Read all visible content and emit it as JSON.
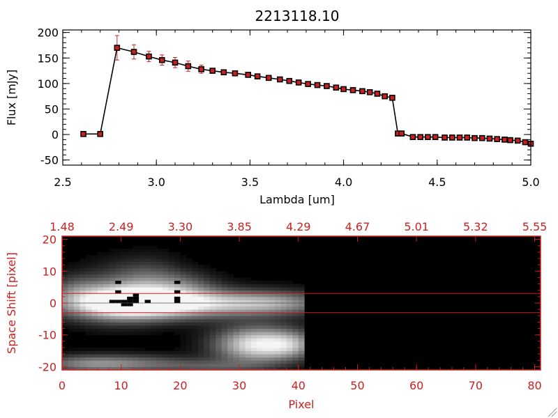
{
  "chart_data": [
    {
      "type": "line",
      "title": "2213118.10",
      "xlabel": "Lambda [um]",
      "ylabel": "Flux [mJy]",
      "xlim": [
        2.5,
        5.0
      ],
      "ylim": [
        -60,
        205
      ],
      "xticks": [
        "2.5",
        "3.0",
        "3.5",
        "4.0",
        "4.5",
        "5.0"
      ],
      "xtick_values": [
        2.5,
        3.0,
        3.5,
        4.0,
        4.5,
        5.0
      ],
      "yticks": [
        "200",
        "150",
        "100",
        "50",
        "0",
        "-50"
      ],
      "ytick_values": [
        200,
        150,
        100,
        50,
        0,
        -50
      ],
      "grid": false,
      "line_color": "#000000",
      "marker_color": "#cc2020",
      "errorbar_color": "#cc2020",
      "x": [
        2.61,
        2.7,
        2.79,
        2.88,
        2.96,
        3.03,
        3.1,
        3.17,
        3.24,
        3.3,
        3.36,
        3.42,
        3.49,
        3.54,
        3.6,
        3.66,
        3.71,
        3.76,
        3.81,
        3.86,
        3.91,
        3.96,
        4.0,
        4.05,
        4.1,
        4.14,
        4.18,
        4.22,
        4.26,
        4.29,
        4.31,
        4.37,
        4.41,
        4.45,
        4.49,
        4.54,
        4.58,
        4.62,
        4.66,
        4.7,
        4.74,
        4.78,
        4.82,
        4.86,
        4.89,
        4.93,
        4.97,
        5.0
      ],
      "y": [
        1,
        1,
        170,
        162,
        153,
        146,
        141,
        134,
        128,
        125,
        122,
        120,
        117,
        114,
        111,
        108,
        105,
        102,
        99,
        97,
        95,
        92,
        89,
        87,
        85,
        83,
        80,
        75,
        72,
        2,
        2,
        -5,
        -5,
        -5,
        -5,
        -6,
        -6,
        -6,
        -6,
        -7,
        -7,
        -8,
        -9,
        -10,
        -11,
        -12,
        -15,
        -18
      ],
      "yerr": [
        0,
        0,
        24,
        14,
        10,
        10,
        10,
        10,
        8,
        4,
        3,
        3,
        3,
        3,
        3,
        3,
        3,
        3,
        3,
        3,
        3,
        3,
        3,
        3,
        3,
        3,
        3,
        3,
        3,
        2,
        2,
        2,
        2,
        2,
        2,
        2,
        2,
        2,
        2,
        2,
        2,
        2,
        2,
        2,
        2,
        2,
        2,
        2
      ]
    },
    {
      "type": "heatmap",
      "xlabel": "Pixel",
      "ylabel": "Space Shift [pixel]",
      "xlim": [
        0,
        81
      ],
      "ylim": [
        -21,
        21
      ],
      "xticks": [
        "0",
        "10",
        "20",
        "30",
        "40",
        "50",
        "60",
        "70",
        "80"
      ],
      "xtick_values": [
        0,
        10,
        20,
        30,
        40,
        50,
        60,
        70,
        80
      ],
      "top_axis_ticks": [
        "1.48",
        "2.49",
        "3.30",
        "3.85",
        "4.29",
        "4.67",
        "5.01",
        "5.32",
        "5.55"
      ],
      "top_axis_positions": [
        0,
        10,
        20,
        30,
        40,
        50,
        60,
        70,
        80
      ],
      "yticks": [
        "20",
        "10",
        "0",
        "-10",
        "-20"
      ],
      "ytick_values": [
        20,
        10,
        0,
        -10,
        -20
      ],
      "axis_color": "#cc2020",
      "colormap": "grayscale",
      "guide_lines_y": [
        3,
        -3
      ],
      "guide_line_color": "#cc2020",
      "data_extent_x": [
        0,
        41
      ],
      "blobs": [
        {
          "x": 12,
          "y": 0,
          "sx": 9,
          "sy": 3.5,
          "v": 1.0
        },
        {
          "x": 25,
          "y": 0,
          "sx": 12,
          "sy": 3,
          "v": 0.55
        },
        {
          "x": 36,
          "y": 0,
          "sx": 6,
          "sy": 2.5,
          "v": 0.35
        },
        {
          "x": 9,
          "y": 3,
          "sx": 5,
          "sy": 6,
          "v": 0.35
        },
        {
          "x": 15,
          "y": 7,
          "sx": 4,
          "sy": 5,
          "v": 0.3
        },
        {
          "x": 21,
          "y": 6,
          "sx": 4,
          "sy": 3,
          "v": 0.25
        },
        {
          "x": 33,
          "y": -13,
          "sx": 5,
          "sy": 4,
          "v": 0.95
        },
        {
          "x": 39,
          "y": -13,
          "sx": 3,
          "sy": 3,
          "v": 0.4
        },
        {
          "x": 4,
          "y": -19,
          "sx": 6,
          "sy": 2,
          "v": 0.45
        },
        {
          "x": 14,
          "y": -19,
          "sx": 7,
          "sy": 2,
          "v": 0.35
        },
        {
          "x": 26,
          "y": -20,
          "sx": 6,
          "sy": 1.5,
          "v": 0.25
        },
        {
          "x": 2,
          "y": 5,
          "sx": 3,
          "sy": 3,
          "v": 0.2
        }
      ],
      "bad_pixels": [
        [
          9,
          0
        ],
        [
          10,
          0
        ],
        [
          11,
          0
        ],
        [
          12,
          0
        ],
        [
          10,
          -1
        ],
        [
          11,
          -1
        ],
        [
          12,
          1
        ],
        [
          11,
          1
        ],
        [
          8,
          0
        ],
        [
          9,
          3
        ],
        [
          12,
          2
        ],
        [
          14,
          0
        ],
        [
          19,
          0
        ],
        [
          19,
          1
        ],
        [
          19,
          3
        ],
        [
          19,
          6
        ],
        [
          9,
          6
        ]
      ]
    }
  ]
}
